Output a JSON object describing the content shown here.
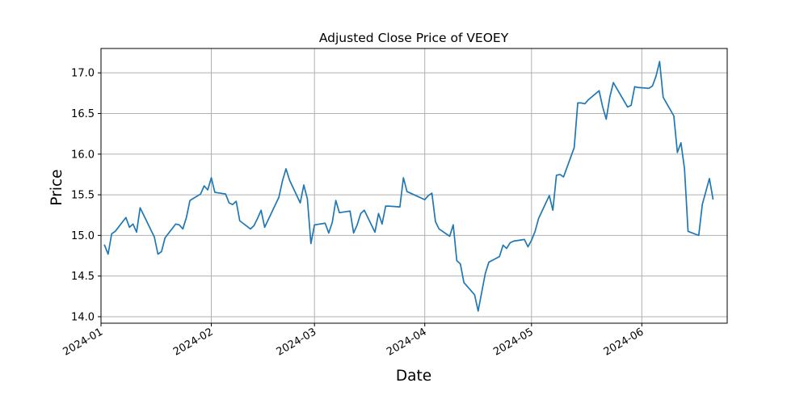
{
  "chart_data": {
    "type": "line",
    "title": "Adjusted Close Price of VEOEY",
    "xlabel": "Date",
    "ylabel": "Price",
    "grid": true,
    "legend": "none",
    "xlim": [
      "2024-01-01",
      "2024-06-25"
    ],
    "ylim": [
      13.92,
      17.3
    ],
    "x_ticks": [
      {
        "date": "2024-01-01",
        "label": "2024-01"
      },
      {
        "date": "2024-02-01",
        "label": "2024-02"
      },
      {
        "date": "2024-03-01",
        "label": "2024-03"
      },
      {
        "date": "2024-04-01",
        "label": "2024-04"
      },
      {
        "date": "2024-05-01",
        "label": "2024-05"
      },
      {
        "date": "2024-06-01",
        "label": "2024-06"
      }
    ],
    "y_ticks": [
      {
        "value": 14.0,
        "label": "14.0"
      },
      {
        "value": 14.5,
        "label": "14.5"
      },
      {
        "value": 15.0,
        "label": "15.0"
      },
      {
        "value": 15.5,
        "label": "15.5"
      },
      {
        "value": 16.0,
        "label": "16.0"
      },
      {
        "value": 16.5,
        "label": "16.5"
      },
      {
        "value": 17.0,
        "label": "17.0"
      }
    ],
    "series": [
      {
        "color": "#1f77b4",
        "x": [
          "2024-01-02",
          "2024-01-03",
          "2024-01-04",
          "2024-01-05",
          "2024-01-08",
          "2024-01-09",
          "2024-01-10",
          "2024-01-11",
          "2024-01-12",
          "2024-01-16",
          "2024-01-17",
          "2024-01-18",
          "2024-01-19",
          "2024-01-22",
          "2024-01-23",
          "2024-01-24",
          "2024-01-25",
          "2024-01-26",
          "2024-01-29",
          "2024-01-30",
          "2024-01-31",
          "2024-02-01",
          "2024-02-02",
          "2024-02-05",
          "2024-02-06",
          "2024-02-07",
          "2024-02-08",
          "2024-02-09",
          "2024-02-12",
          "2024-02-13",
          "2024-02-14",
          "2024-02-15",
          "2024-02-16",
          "2024-02-20",
          "2024-02-21",
          "2024-02-22",
          "2024-02-23",
          "2024-02-26",
          "2024-02-27",
          "2024-02-28",
          "2024-02-29",
          "2024-03-01",
          "2024-03-04",
          "2024-03-05",
          "2024-03-06",
          "2024-03-07",
          "2024-03-08",
          "2024-03-11",
          "2024-03-12",
          "2024-03-13",
          "2024-03-14",
          "2024-03-15",
          "2024-03-18",
          "2024-03-19",
          "2024-03-20",
          "2024-03-21",
          "2024-03-22",
          "2024-03-25",
          "2024-03-26",
          "2024-03-27",
          "2024-03-28",
          "2024-04-01",
          "2024-04-02",
          "2024-04-03",
          "2024-04-04",
          "2024-04-05",
          "2024-04-08",
          "2024-04-09",
          "2024-04-10",
          "2024-04-11",
          "2024-04-12",
          "2024-04-15",
          "2024-04-16",
          "2024-04-17",
          "2024-04-18",
          "2024-04-19",
          "2024-04-22",
          "2024-04-23",
          "2024-04-24",
          "2024-04-25",
          "2024-04-26",
          "2024-04-29",
          "2024-04-30",
          "2024-05-01",
          "2024-05-02",
          "2024-05-03",
          "2024-05-06",
          "2024-05-07",
          "2024-05-08",
          "2024-05-09",
          "2024-05-10",
          "2024-05-13",
          "2024-05-14",
          "2024-05-15",
          "2024-05-16",
          "2024-05-17",
          "2024-05-20",
          "2024-05-21",
          "2024-05-22",
          "2024-05-23",
          "2024-05-24",
          "2024-05-28",
          "2024-05-29",
          "2024-05-30",
          "2024-05-31",
          "2024-06-03",
          "2024-06-04",
          "2024-06-05",
          "2024-06-06",
          "2024-06-07",
          "2024-06-10",
          "2024-06-11",
          "2024-06-12",
          "2024-06-13",
          "2024-06-14",
          "2024-06-17",
          "2024-06-18",
          "2024-06-20",
          "2024-06-21"
        ],
        "y": [
          14.88,
          14.77,
          15.02,
          15.05,
          15.22,
          15.1,
          15.14,
          15.04,
          15.34,
          14.98,
          14.77,
          14.8,
          14.97,
          15.14,
          15.13,
          15.08,
          15.22,
          15.43,
          15.51,
          15.61,
          15.56,
          15.71,
          15.53,
          15.51,
          15.4,
          15.38,
          15.42,
          15.18,
          15.08,
          15.12,
          15.21,
          15.31,
          15.1,
          15.47,
          15.67,
          15.82,
          15.68,
          15.4,
          15.62,
          15.45,
          14.9,
          15.13,
          15.15,
          15.03,
          15.16,
          15.43,
          15.28,
          15.3,
          15.03,
          15.13,
          15.27,
          15.31,
          15.04,
          15.27,
          15.14,
          15.36,
          15.36,
          15.35,
          15.71,
          15.54,
          15.52,
          15.44,
          15.49,
          15.52,
          15.17,
          15.08,
          14.99,
          15.13,
          14.69,
          14.65,
          14.42,
          14.27,
          14.07,
          14.3,
          14.53,
          14.67,
          14.74,
          14.88,
          14.84,
          14.91,
          14.93,
          14.95,
          14.86,
          14.94,
          15.05,
          15.21,
          15.49,
          15.31,
          15.74,
          15.75,
          15.72,
          16.08,
          16.63,
          16.63,
          16.62,
          16.67,
          16.78,
          16.58,
          16.43,
          16.7,
          16.88,
          16.58,
          16.6,
          16.83,
          16.82,
          16.81,
          16.84,
          16.96,
          17.14,
          16.7,
          16.47,
          16.02,
          16.14,
          15.82,
          15.05,
          15.0,
          15.38,
          15.7,
          15.45
        ]
      }
    ]
  }
}
